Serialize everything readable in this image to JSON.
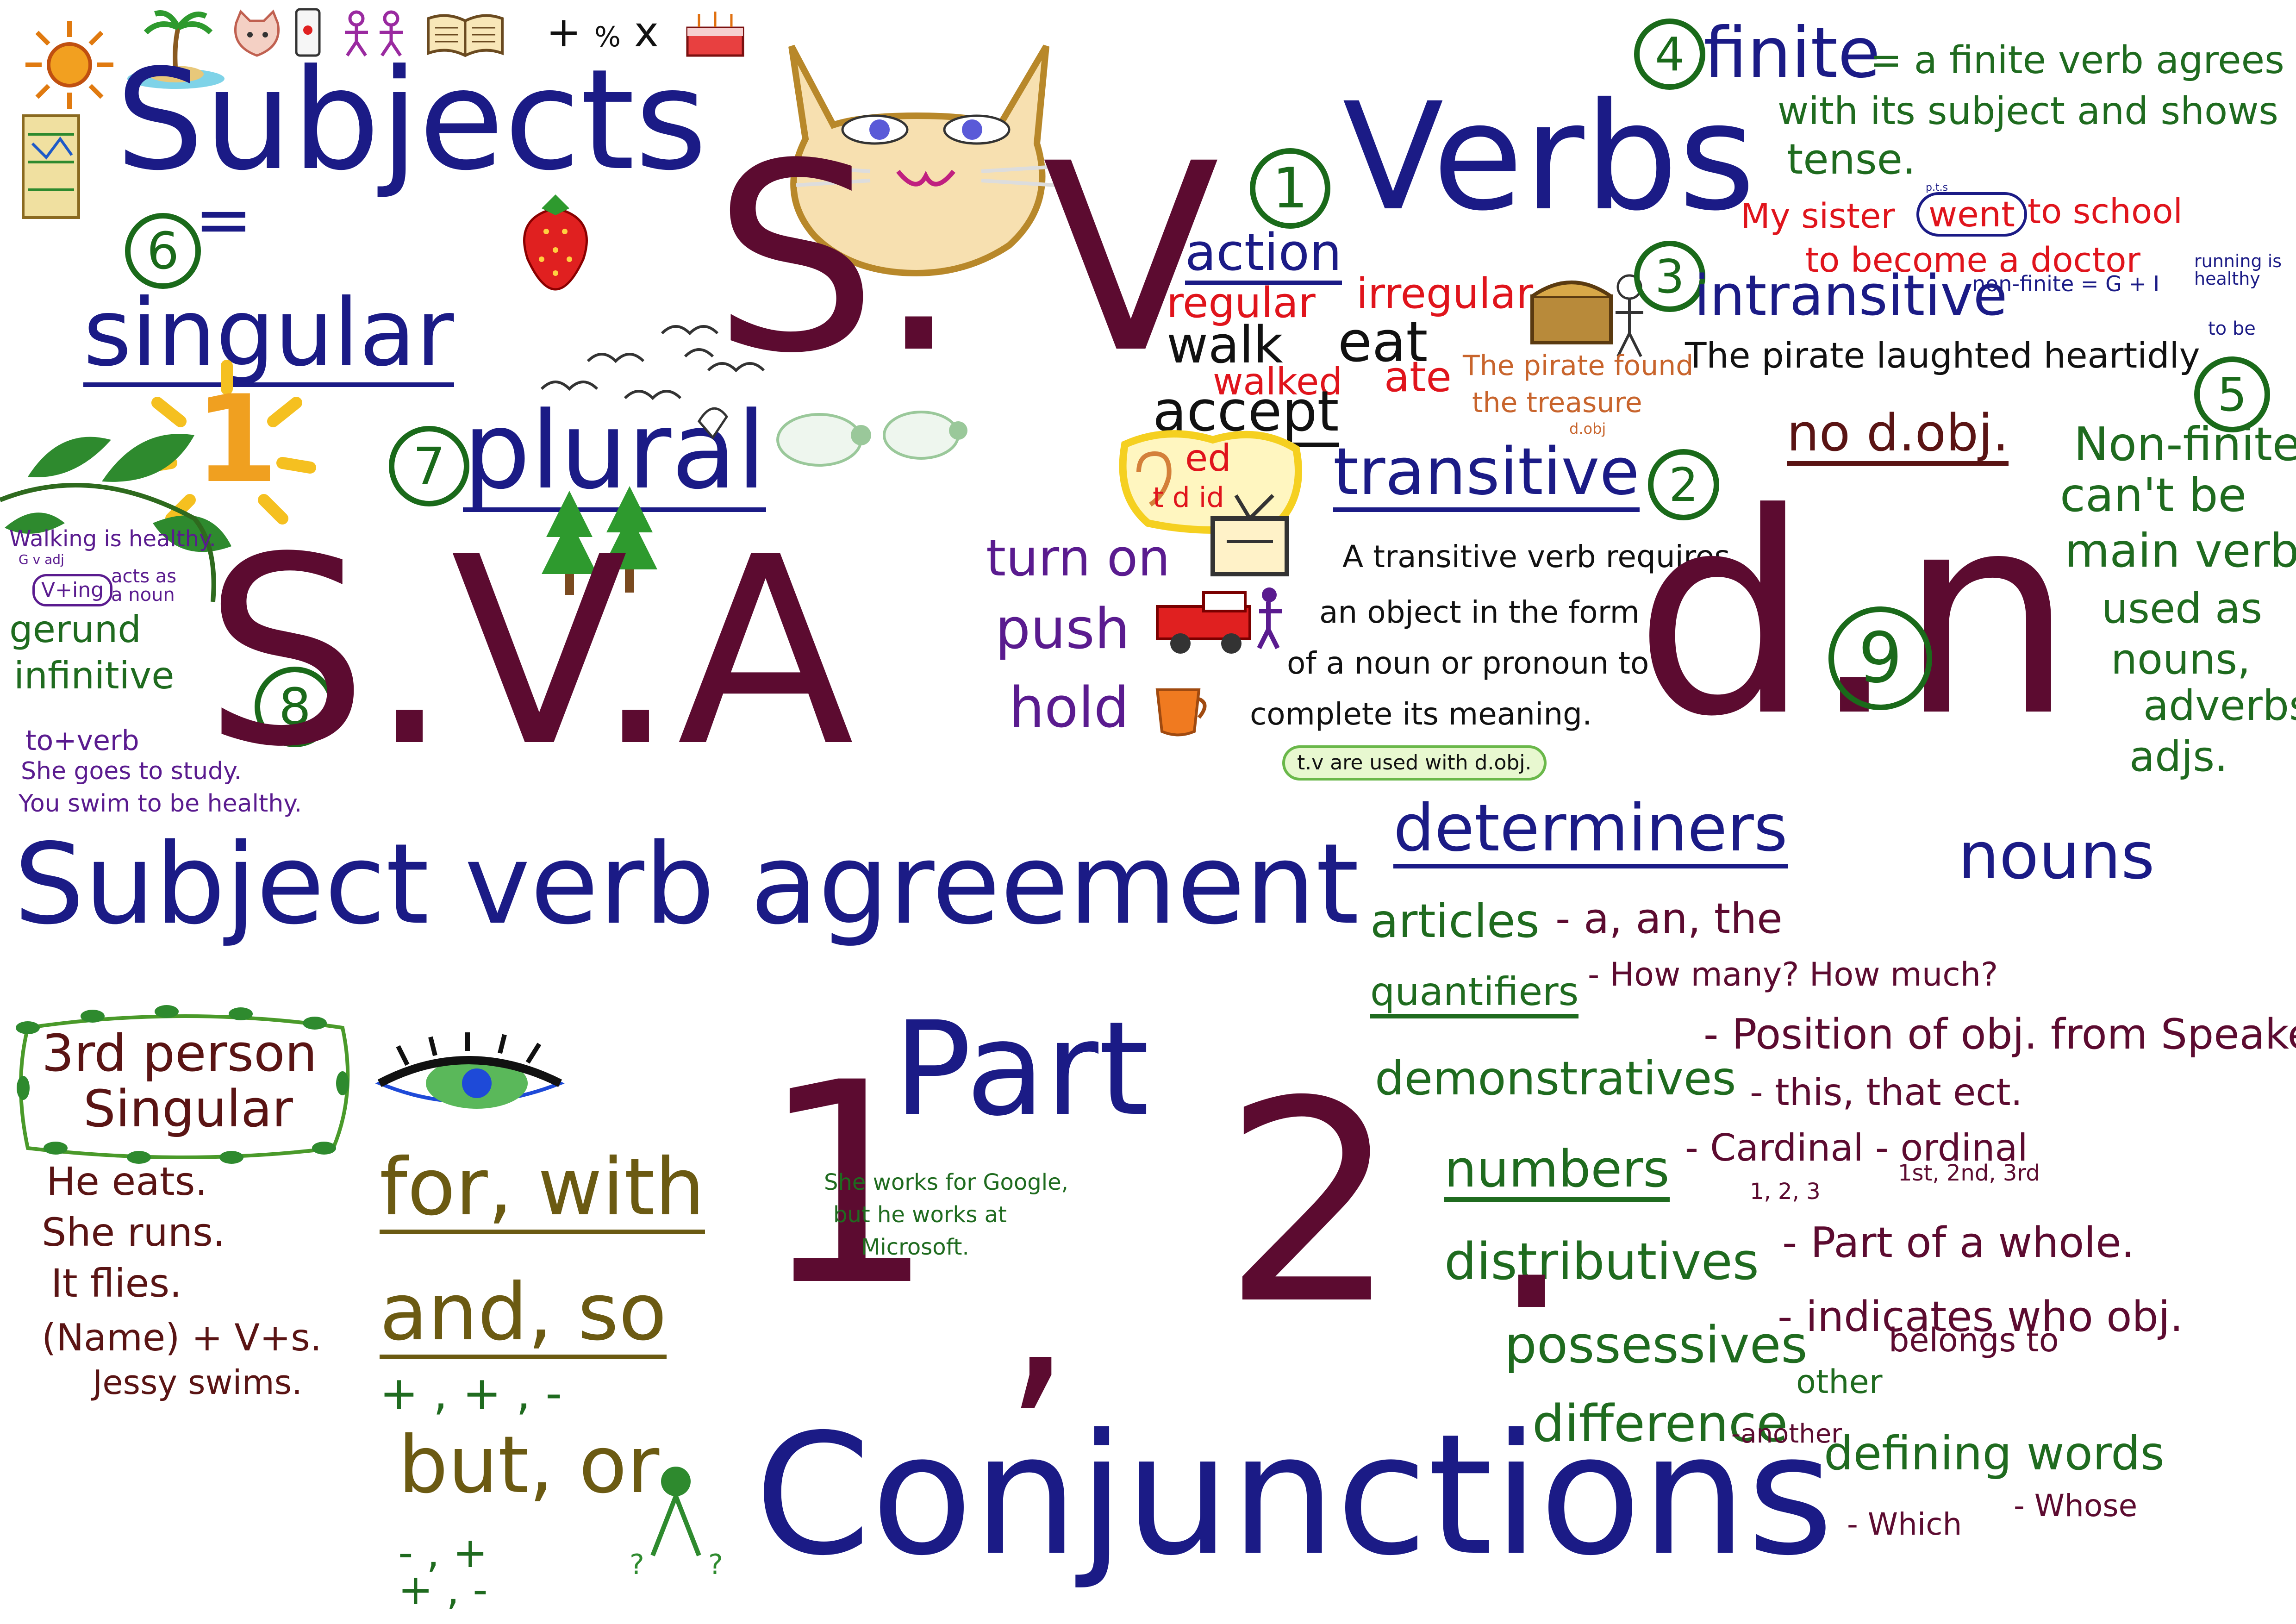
{
  "headings": {
    "subjects": "Subjects",
    "verbs": "Verbs",
    "sv": "S. V",
    "sva": "S.V.A",
    "don": "d.n",
    "sva_full": "Subject verb agreement",
    "part": "Part",
    "conjunctions": "Conjunctions",
    "one": "1",
    "comma": ",",
    "two": "2",
    "dot": "."
  },
  "numbers": [
    "6",
    "7",
    "8",
    "1",
    "2",
    "3",
    "4",
    "5",
    "9"
  ],
  "subjects_section": {
    "singular": "singular",
    "singular_num": "1",
    "plural": "plural"
  },
  "gerund_section": {
    "example": "Walking is healthy.",
    "marks": "G     v     adj",
    "vting": "V+ing",
    "acts": "acts as a noun",
    "gerund": "gerund",
    "infinitive": "infinitive",
    "to_verb": "to+verb",
    "ex1": "She goes to study.",
    "ex2": "You swim to be healthy."
  },
  "third_person": {
    "title_line1": "3rd person",
    "title_line2": "Singular",
    "ex1": "He eats.",
    "ex2": "She runs.",
    "ex3": "It flies.",
    "ex4": "(Name) + V+s.",
    "ex5": "Jessy swims."
  },
  "verbs_section": {
    "action": "action",
    "regular": "regular",
    "walk": "walk",
    "walked": "walked",
    "accept": "accept",
    "ed": "ed",
    "t_d_id": "t   d   id",
    "irregular": "irregular",
    "eat": "eat",
    "ate": "ate",
    "phrasal1": "turn on",
    "phrasal2": "push",
    "phrasal3": "hold",
    "pirate_example_line1": "The pirate found",
    "pirate_example_line2": "the treasure",
    "dobj_mark": "d.obj",
    "transitive": "transitive",
    "transitive_def_line1": "A transitive verb requires",
    "transitive_def_line2": "an object in the form",
    "transitive_def_line3": "of a noun or pronoun to",
    "transitive_def_line4": "complete its meaning.",
    "tv_banner": "t.v are used with d.obj.",
    "intransitive": "intransitive",
    "intransitive_example": "The pirate laughted heartidly",
    "no_dobj": "no d.obj."
  },
  "finite_section": {
    "finite": "finite",
    "def_line1": "= a finite verb agrees",
    "def_line2": "with its subject and shows",
    "def_line3": "tense.",
    "example_line1_a": "My sister",
    "example_went": "went",
    "example_line1_b": "to school",
    "example_line2": "to become a doctor",
    "pts": "p.t.s",
    "nonfinite_formula": "non-finite = G + I",
    "running": "running is healthy",
    "to_be": "to be",
    "nonfinite_title": "Non-finite",
    "nonfinite_line2": "can't be",
    "nonfinite_line3": "main verb",
    "used_line1": "used as",
    "used_line2": "nouns,",
    "used_line3": "adverbs,",
    "used_line4": "adjs."
  },
  "determiners_section": {
    "determiners": "determiners",
    "nouns": "nouns",
    "articles": "articles",
    "articles_def": "- a, an, the",
    "quantifiers": "quantifiers",
    "quantifiers_def": "- How many?  How much?",
    "demonstratives": "demonstratives",
    "demonstratives_def": "- Position of obj. from Speaker.",
    "demonstratives_ex": "- this, that ect.",
    "numbers": "numbers",
    "numbers_def": "- Cardinal  - ordinal",
    "cardinal_ex": "1, 2, 3",
    "ordinal_ex": "1st, 2nd, 3rd",
    "distributives": "distributives",
    "distributives_def": "- Part of a whole.",
    "possessives": "possessives",
    "possessives_def": "- indicates who obj.",
    "possessives_def2": "belongs to",
    "difference": "difference",
    "other": "other",
    "another": "-another",
    "defining": "defining words",
    "which": "- Which",
    "whose": "- Whose"
  },
  "conjunctions_section": {
    "for_with": "for, with",
    "and_so": "and, so",
    "but_or": "but, or",
    "example_line1": "She works for Google,",
    "example_line2": "but he works at",
    "example_line3": "Microsoft."
  },
  "colors": {
    "navy": "#1b1b86",
    "maroon": "#5c0b30",
    "green": "#1f6b1f",
    "red": "#e0141c",
    "purple": "#5a1b8f",
    "olive": "#6b5a12",
    "brown": "#5a1414"
  },
  "icons": [
    "sun-icon",
    "island-icon",
    "cat-face-icon",
    "phone-icon",
    "people-icon",
    "book-icon",
    "math-symbols-icon",
    "cake-icon",
    "map-icon",
    "strawberry-icon",
    "birds-icon",
    "sheep-icon",
    "trees-icon",
    "vine-icon",
    "eye-icon",
    "treasure-chest-icon",
    "tv-icon",
    "truck-icon",
    "cup-icon",
    "ear-icon",
    "person-icon"
  ]
}
